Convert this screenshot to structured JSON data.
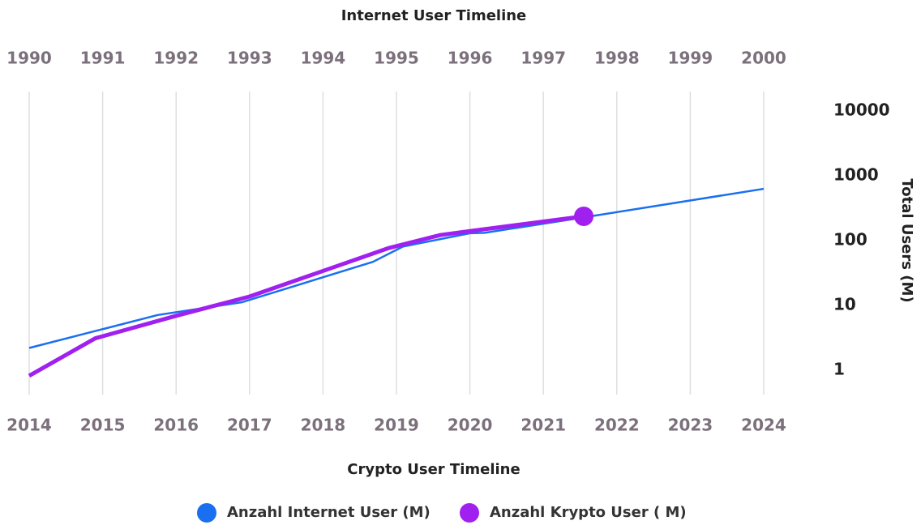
{
  "chart_data": {
    "type": "line",
    "x2label": "Internet User Timeline",
    "xlabel": "Crypto User Timeline",
    "ylabel": "Total Users (M)",
    "xlim": [
      2014,
      2024
    ],
    "xticks": [
      2014,
      2015,
      2016,
      2017,
      2018,
      2019,
      2020,
      2021,
      2022,
      2023,
      2024
    ],
    "x2lim": [
      1990,
      2000
    ],
    "x2ticks": [
      1990,
      1991,
      1992,
      1993,
      1994,
      1995,
      1996,
      1997,
      1998,
      1999,
      2000
    ],
    "ylim": [
      0.42,
      20000
    ],
    "yticks": [
      1,
      10,
      100,
      1000,
      10000
    ],
    "log_y": true,
    "grid": true,
    "legend": "bottom",
    "series": [
      {
        "name": "Anzahl Internet User (M)",
        "color": "#1a6ff0",
        "xaxis": "x2",
        "x": [
          1990,
          1991.75,
          1992.9,
          1994.68,
          1995.09,
          1996.0,
          1996.2,
          1997.44,
          2000
        ],
        "values": [
          2.2,
          7.1,
          11.2,
          47,
          81,
          130,
          132,
          218,
          630
        ]
      },
      {
        "name": "Anzahl Krypto User ( M)",
        "color": "#a020f0",
        "x": [
          2014,
          2014.9,
          2016,
          2017,
          2018,
          2018.9,
          2019.6,
          2020,
          2021.55
        ],
        "values": [
          0.82,
          3.1,
          6.9,
          13.7,
          34,
          77,
          122,
          140,
          237
        ]
      }
    ]
  }
}
